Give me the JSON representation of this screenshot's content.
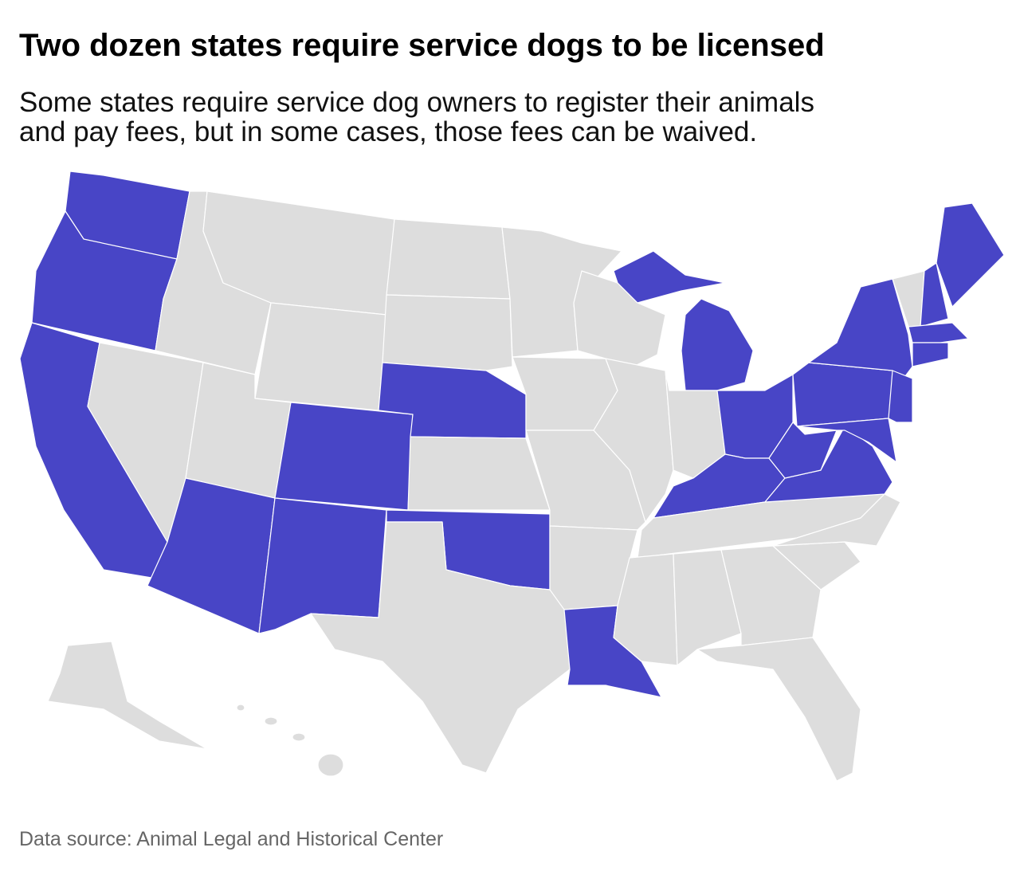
{
  "header": {
    "title": "Two dozen states require service dogs to be licensed",
    "subtitle": [
      "Some states require service dog owners to register their animals",
      "and pay fees, but in some cases, those fees can be waived."
    ]
  },
  "map": {
    "highlight_color": "#4845c6",
    "base_color": "#dddddd",
    "border_color": "#ffffff"
  },
  "footer": {
    "source": "Data source: Animal Legal and Historical Center"
  }
}
